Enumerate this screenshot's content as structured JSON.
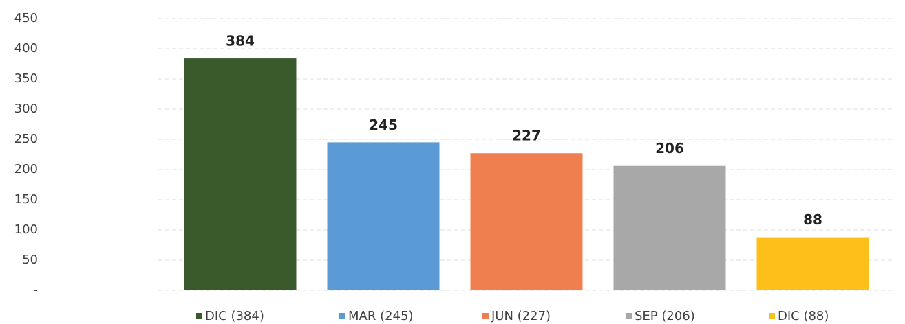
{
  "chart_data": {
    "type": "bar",
    "series": [
      {
        "name": "DIC (384)",
        "color": "#3a5a2c",
        "values": [
          384
        ]
      },
      {
        "name": "MAR (245)",
        "color": "#5b9bd5",
        "values": [
          245
        ]
      },
      {
        "name": "JUN (227)",
        "color": "#f07f4f",
        "values": [
          227
        ]
      },
      {
        "name": "SEP (206)",
        "color": "#a8a8a8",
        "values": [
          206
        ]
      },
      {
        "name": "DIC (88)",
        "color": "#ffbf1a",
        "values": [
          88
        ]
      }
    ],
    "ylim": [
      0,
      450
    ],
    "yticks": [
      {
        "value": 0,
        "label": "-"
      },
      50,
      100,
      150,
      200,
      250,
      300,
      350,
      400,
      450
    ],
    "grid": true,
    "legend": "bottom"
  }
}
